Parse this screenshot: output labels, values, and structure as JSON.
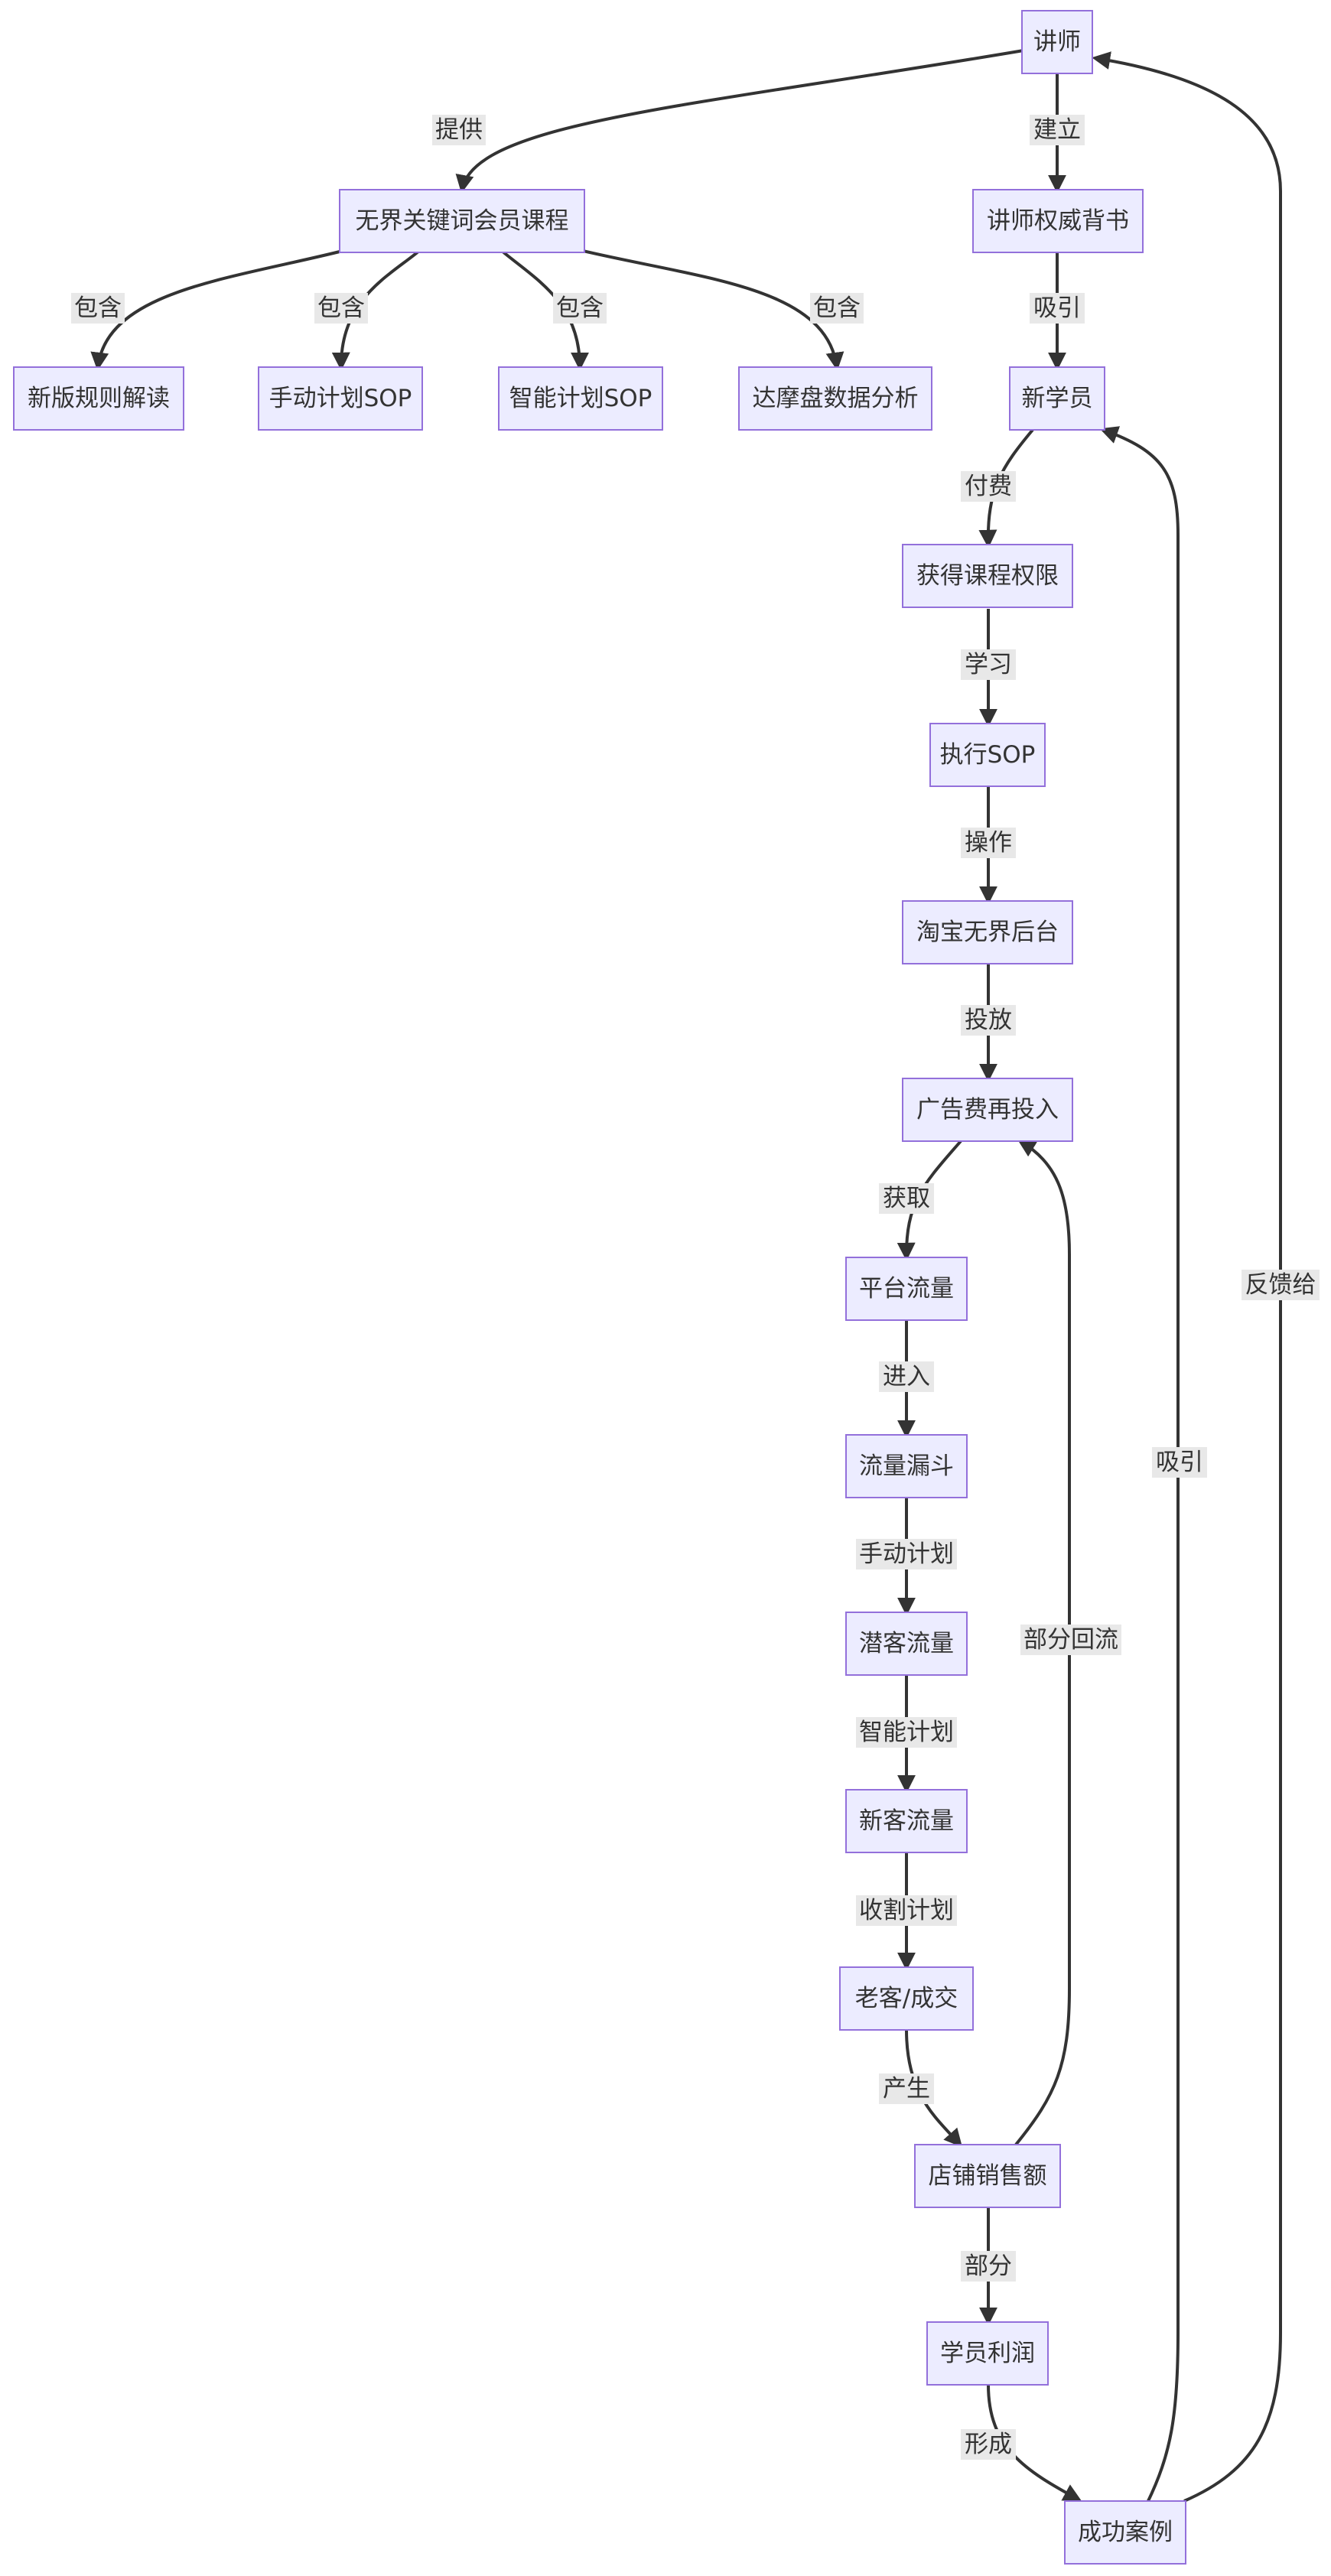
{
  "nodes": {
    "jiangshi": "讲师",
    "course": "无界关键词会员课程",
    "authority": "讲师权威背书",
    "rules": "新版规则解读",
    "manual_sop": "手动计划SOP",
    "smart_sop": "智能计划SOP",
    "damopan": "达摩盘数据分析",
    "new_student": "新学员",
    "access": "获得课程权限",
    "exec_sop": "执行SOP",
    "backend": "淘宝无界后台",
    "adspend": "广告费再投入",
    "traffic": "平台流量",
    "funnel": "流量漏斗",
    "latent": "潜客流量",
    "newcust": "新客流量",
    "oldcust": "老客/成交",
    "sales": "店铺销售额",
    "profit": "学员利润",
    "success": "成功案例"
  },
  "edge_labels": {
    "provide": "提供",
    "establish": "建立",
    "contains": "包含",
    "attract": "吸引",
    "pay": "付费",
    "learn": "学习",
    "operate": "操作",
    "invest": "投放",
    "obtain": "获取",
    "enter": "进入",
    "manual": "手动计划",
    "smart": "智能计划",
    "harvest": "收割计划",
    "produce": "产生",
    "partial": "部分",
    "form": "形成",
    "partial_return": "部分回流",
    "feedback": "反馈给"
  }
}
